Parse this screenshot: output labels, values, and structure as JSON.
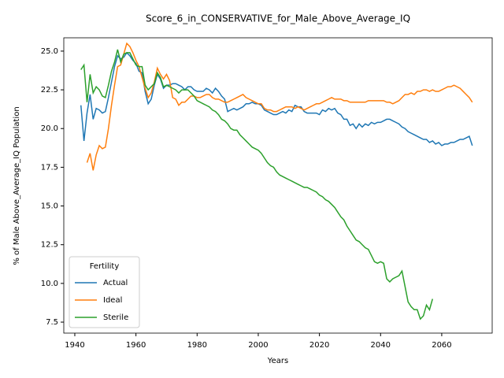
{
  "chart_data": {
    "type": "line",
    "title": "Score_6_in_CONSERVATIVE_for_Male_Above_Average_IQ",
    "xlabel": "Years",
    "ylabel": "% of Male Above_Average_IQ Population",
    "legend_title": "Fertility",
    "legend": "lower left",
    "x": [
      1942,
      1943,
      1944,
      1945,
      1946,
      1947,
      1948,
      1949,
      1950,
      1951,
      1952,
      1953,
      1954,
      1955,
      1956,
      1957,
      1958,
      1959,
      1960,
      1961,
      1962,
      1963,
      1964,
      1965,
      1966,
      1967,
      1968,
      1969,
      1970,
      1971,
      1972,
      1973,
      1974,
      1975,
      1976,
      1977,
      1978,
      1979,
      1980,
      1981,
      1982,
      1983,
      1984,
      1985,
      1986,
      1987,
      1988,
      1989,
      1990,
      1991,
      1992,
      1993,
      1994,
      1995,
      1996,
      1997,
      1998,
      1999,
      2000,
      2001,
      2002,
      2003,
      2004,
      2005,
      2006,
      2007,
      2008,
      2009,
      2010,
      2011,
      2012,
      2013,
      2014,
      2015,
      2016,
      2017,
      2018,
      2019,
      2020,
      2021,
      2022,
      2023,
      2024,
      2025,
      2026,
      2027,
      2028,
      2029,
      2030,
      2031,
      2032,
      2033,
      2034,
      2035,
      2036,
      2037,
      2038,
      2039,
      2040,
      2041,
      2042,
      2043,
      2044,
      2045,
      2046,
      2047,
      2048,
      2049,
      2050,
      2051,
      2052,
      2053,
      2054,
      2055,
      2056,
      2057,
      2058,
      2059,
      2060,
      2061,
      2062,
      2063,
      2064,
      2065,
      2066,
      2067,
      2068,
      2069,
      2070
    ],
    "series": [
      {
        "name": "Actual",
        "color": "#1f77b4",
        "values": [
          21.5,
          19.2,
          21.0,
          22.2,
          20.6,
          21.3,
          21.2,
          21.0,
          21.1,
          22.0,
          23.0,
          24.0,
          24.7,
          24.5,
          24.6,
          24.9,
          24.7,
          24.4,
          24.2,
          23.7,
          23.6,
          22.4,
          21.6,
          21.9,
          22.8,
          23.5,
          23.2,
          22.6,
          22.8,
          22.8,
          22.9,
          22.9,
          22.8,
          22.7,
          22.5,
          22.7,
          22.7,
          22.5,
          22.4,
          22.4,
          22.4,
          22.6,
          22.5,
          22.3,
          22.6,
          22.4,
          22.1,
          21.9,
          21.1,
          21.2,
          21.3,
          21.2,
          21.3,
          21.4,
          21.6,
          21.6,
          21.7,
          21.6,
          21.6,
          21.5,
          21.2,
          21.1,
          21.0,
          20.9,
          20.9,
          21.0,
          21.1,
          21.0,
          21.2,
          21.1,
          21.5,
          21.4,
          21.4,
          21.1,
          21.0,
          21.0,
          21.0,
          21.0,
          20.9,
          21.2,
          21.1,
          21.3,
          21.2,
          21.3,
          21.0,
          20.9,
          20.6,
          20.6,
          20.2,
          20.3,
          20.0,
          20.3,
          20.1,
          20.3,
          20.2,
          20.4,
          20.3,
          20.4,
          20.4,
          20.5,
          20.6,
          20.6,
          20.5,
          20.4,
          20.3,
          20.1,
          20.0,
          19.8,
          19.7,
          19.6,
          19.5,
          19.4,
          19.3,
          19.3,
          19.1,
          19.2,
          19.0,
          19.1,
          18.9,
          19.0,
          19.0,
          19.1,
          19.1,
          19.2,
          19.3,
          19.3,
          19.4,
          19.5,
          18.9
        ]
      },
      {
        "name": "Ideal",
        "color": "#ff7f0e",
        "values": [
          null,
          null,
          17.8,
          18.4,
          17.3,
          18.3,
          18.9,
          18.7,
          18.8,
          20.0,
          21.5,
          22.8,
          24.0,
          24.1,
          24.8,
          25.5,
          25.3,
          24.9,
          24.4,
          24.0,
          23.3,
          22.6,
          22.0,
          22.3,
          23.0,
          23.9,
          23.5,
          23.2,
          23.5,
          23.1,
          22.0,
          21.9,
          21.5,
          21.7,
          21.7,
          21.9,
          22.1,
          22.1,
          22.0,
          22.0,
          22.1,
          22.2,
          22.2,
          22.0,
          21.9,
          21.9,
          21.8,
          21.7,
          21.7,
          21.8,
          21.9,
          22.0,
          22.1,
          22.2,
          22.0,
          21.9,
          21.8,
          21.7,
          21.6,
          21.6,
          21.3,
          21.2,
          21.2,
          21.1,
          21.1,
          21.2,
          21.3,
          21.4,
          21.4,
          21.4,
          21.3,
          21.4,
          21.3,
          21.2,
          21.3,
          21.4,
          21.5,
          21.6,
          21.6,
          21.7,
          21.8,
          21.9,
          22.0,
          21.9,
          21.9,
          21.9,
          21.8,
          21.8,
          21.7,
          21.7,
          21.7,
          21.7,
          21.7,
          21.7,
          21.8,
          21.8,
          21.8,
          21.8,
          21.8,
          21.8,
          21.7,
          21.7,
          21.6,
          21.7,
          21.8,
          22.0,
          22.2,
          22.2,
          22.3,
          22.2,
          22.4,
          22.4,
          22.5,
          22.5,
          22.4,
          22.5,
          22.4,
          22.4,
          22.5,
          22.6,
          22.7,
          22.7,
          22.8,
          22.7,
          22.6,
          22.4,
          22.2,
          22.0,
          21.7
        ]
      },
      {
        "name": "Sterile",
        "color": "#2ca02c",
        "values": [
          23.8,
          24.1,
          21.7,
          23.5,
          22.3,
          22.7,
          22.5,
          22.1,
          22.0,
          22.8,
          23.7,
          24.3,
          25.1,
          24.3,
          24.8,
          24.9,
          24.9,
          24.5,
          24.1,
          24.0,
          24.0,
          22.8,
          22.5,
          22.7,
          22.9,
          23.6,
          23.3,
          22.7,
          22.8,
          22.7,
          22.6,
          22.5,
          22.3,
          22.5,
          22.5,
          22.5,
          22.3,
          22.1,
          21.8,
          21.7,
          21.6,
          21.5,
          21.4,
          21.2,
          21.1,
          20.9,
          20.6,
          20.5,
          20.3,
          20.0,
          19.9,
          19.9,
          19.6,
          19.4,
          19.2,
          19.0,
          18.8,
          18.7,
          18.6,
          18.4,
          18.1,
          17.8,
          17.6,
          17.5,
          17.2,
          17.0,
          16.9,
          16.8,
          16.7,
          16.6,
          16.5,
          16.4,
          16.3,
          16.2,
          16.2,
          16.1,
          16.0,
          15.9,
          15.7,
          15.6,
          15.4,
          15.3,
          15.1,
          14.9,
          14.6,
          14.3,
          14.1,
          13.7,
          13.4,
          13.1,
          12.8,
          12.7,
          12.5,
          12.3,
          12.2,
          11.8,
          11.4,
          11.3,
          11.4,
          11.3,
          10.3,
          10.1,
          10.3,
          10.4,
          10.5,
          10.8,
          9.8,
          8.8,
          8.5,
          8.3,
          8.3,
          7.7,
          7.9,
          8.6,
          8.3,
          9.0,
          null,
          null,
          null,
          null,
          null,
          null,
          null,
          null,
          null,
          null,
          null,
          null,
          null
        ]
      }
    ],
    "xlim": [
      1936.4,
      2076.5
    ],
    "ylim": [
      6.79,
      25.86
    ],
    "xticks": [
      1940,
      1960,
      1980,
      2000,
      2020,
      2040,
      2060
    ],
    "yticks": [
      7.5,
      {
        "value": 10.0,
        "label": "10.0"
      },
      12.5,
      {
        "value": 15.0,
        "label": "15.0"
      },
      17.5,
      {
        "value": 20.0,
        "label": "20.0"
      },
      22.5,
      {
        "value": 25.0,
        "label": "25.0"
      }
    ]
  }
}
